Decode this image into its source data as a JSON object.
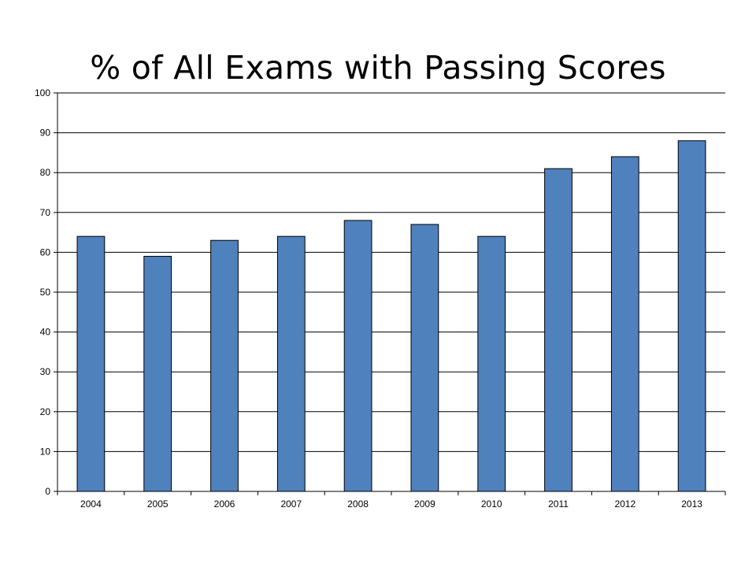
{
  "chart_data": {
    "type": "bar",
    "title": "% of All Exams with Passing Scores",
    "xlabel": "",
    "ylabel": "",
    "categories": [
      "2004",
      "2005",
      "2006",
      "2007",
      "2008",
      "2009",
      "2010",
      "2011",
      "2012",
      "2013"
    ],
    "values": [
      64,
      59,
      63,
      64,
      68,
      67,
      64,
      81,
      84,
      88
    ],
    "ylim": [
      0,
      100
    ],
    "yticks": [
      "0",
      "10",
      "20",
      "30",
      "40",
      "50",
      "60",
      "70",
      "80",
      "90",
      "100"
    ],
    "grid": true,
    "legend": "none",
    "bar_color": "#4f81bd"
  }
}
